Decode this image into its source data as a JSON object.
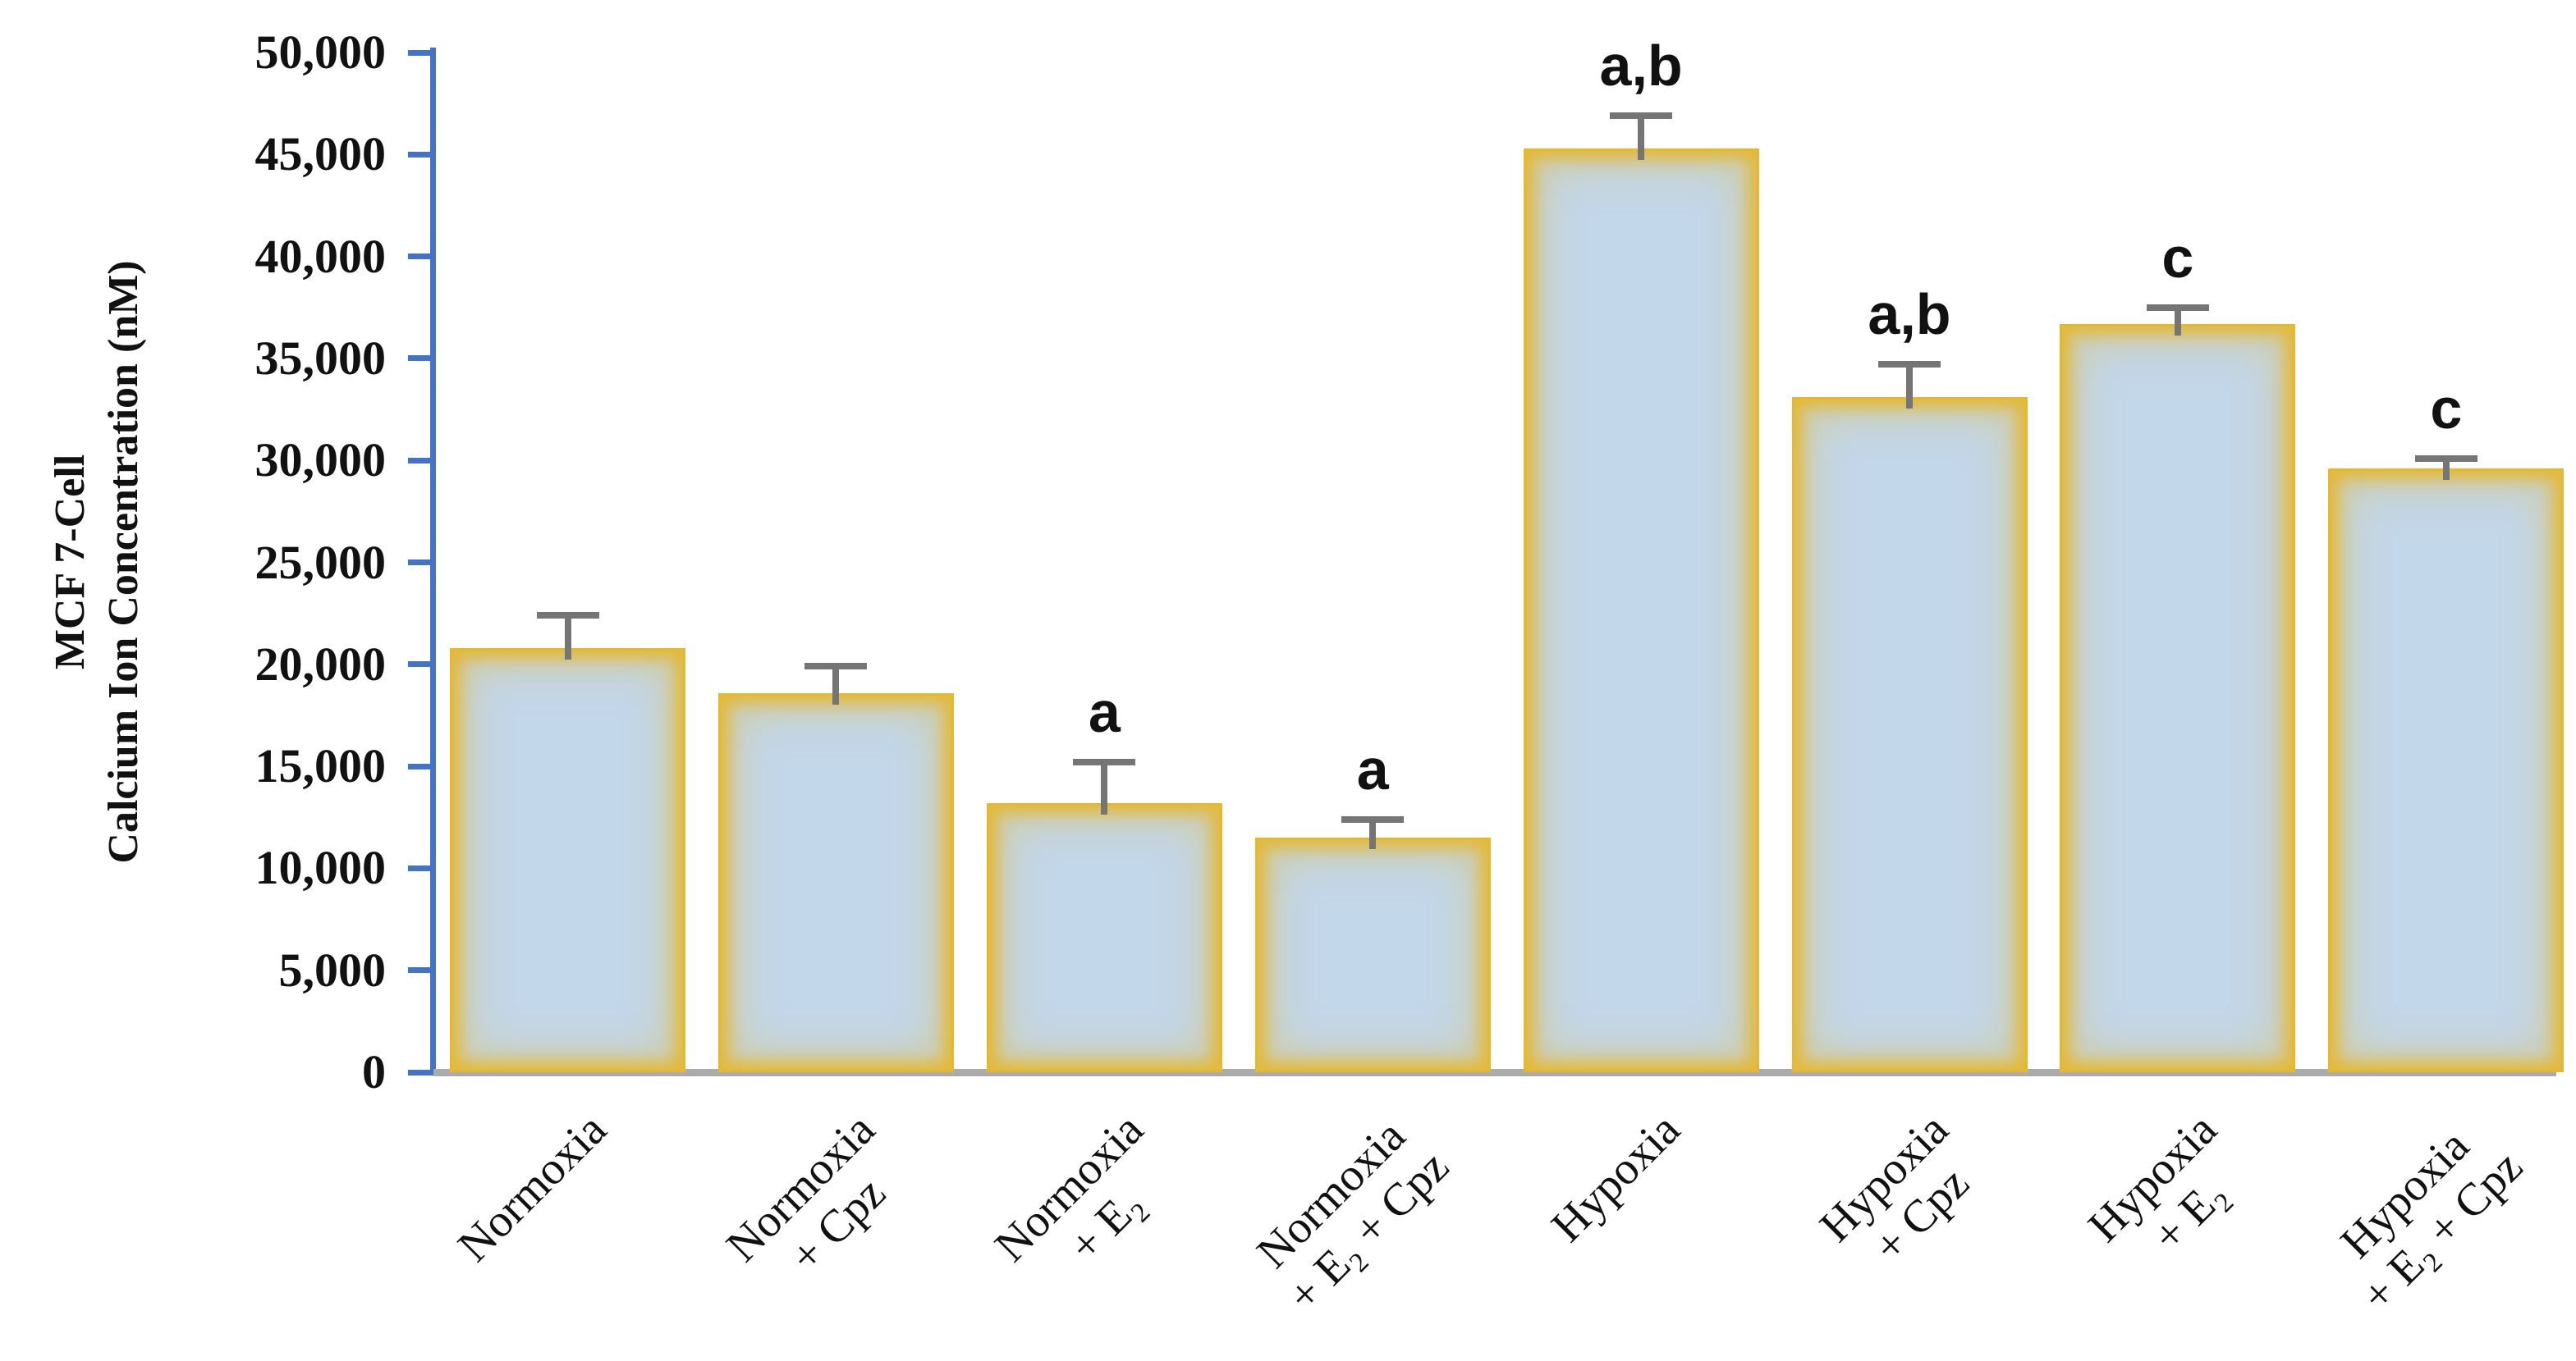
{
  "chart_data": {
    "type": "bar",
    "title": "",
    "ylabel_lines": [
      "MCF 7-Cell",
      "Calcium Ion Concentration (nM)"
    ],
    "xlabel": "",
    "ylim": [
      0,
      50000
    ],
    "ytick_step": 5000,
    "grid": "off",
    "legend": "none",
    "yticks": [
      {
        "value": 50000,
        "label": "50,000"
      },
      {
        "value": 45000,
        "label": "45,000"
      },
      {
        "value": 40000,
        "label": "40,000"
      },
      {
        "value": 35000,
        "label": "35,000"
      },
      {
        "value": 30000,
        "label": "30,000"
      },
      {
        "value": 25000,
        "label": "25,000"
      },
      {
        "value": 20000,
        "label": "20,000"
      },
      {
        "value": 15000,
        "label": "15,000"
      },
      {
        "value": 10000,
        "label": "10,000"
      },
      {
        "value": 5000,
        "label": "5,000"
      },
      {
        "value": 0,
        "label": "0"
      }
    ],
    "categories": [
      "Normoxia",
      "Normoxia + Cpz",
      "Normoxia + E₂",
      "Normoxia + E₂ + Cpz",
      "Hypoxia",
      "Hypoxia + Cpz",
      "Hypoxia + E₂",
      "Hypoxia + E₂ + Cpz"
    ],
    "bars": [
      {
        "label_lines": [
          "Normoxia"
        ],
        "value": 20800,
        "error_top": 22400,
        "annotation": ""
      },
      {
        "label_lines": [
          "Normoxia",
          "+ Cpz"
        ],
        "value": 18600,
        "error_top": 19900,
        "annotation": ""
      },
      {
        "label_lines": [
          "Normoxia",
          "+ E₂"
        ],
        "value": 13200,
        "error_top": 15200,
        "annotation": "a"
      },
      {
        "label_lines": [
          "Normoxia",
          "+ E₂ + Cpz"
        ],
        "value": 11500,
        "error_top": 12400,
        "annotation": "a"
      },
      {
        "label_lines": [
          "Hypoxia"
        ],
        "value": 45300,
        "error_top": 46900,
        "annotation": "a,b"
      },
      {
        "label_lines": [
          "Hypoxia",
          "+ Cpz"
        ],
        "value": 33100,
        "error_top": 34700,
        "annotation": "a,b"
      },
      {
        "label_lines": [
          "Hypoxia",
          "+ E₂"
        ],
        "value": 36700,
        "error_top": 37500,
        "annotation": "c"
      },
      {
        "label_lines": [
          "Hypoxia",
          "+ E₂ + Cpz"
        ],
        "value": 29600,
        "error_top": 30100,
        "annotation": "c"
      }
    ],
    "colors": {
      "bar_fill": "#c3d7ea",
      "bar_border": "#e5b832",
      "axis_line": "#4472c4",
      "baseline": "#ababab",
      "error_bar": "#757575",
      "text": "#111111"
    }
  }
}
